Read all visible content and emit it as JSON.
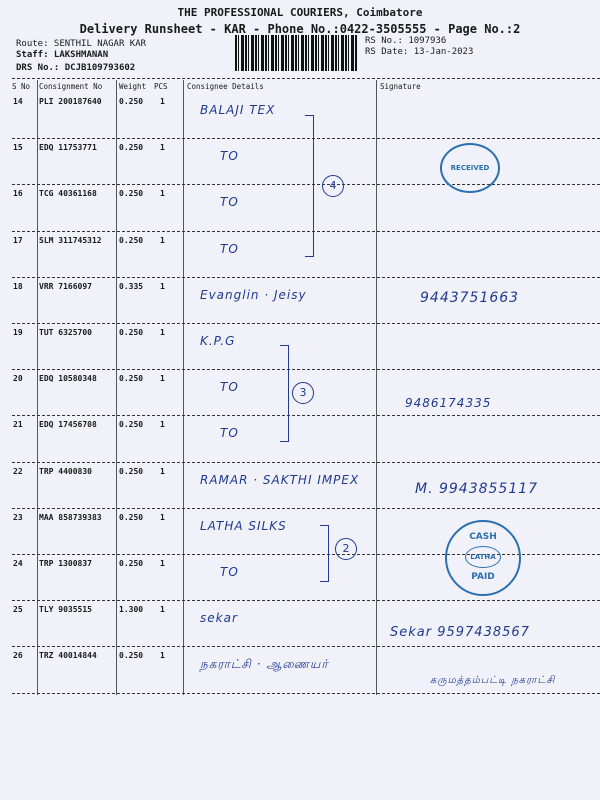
{
  "header": {
    "title": "THE PROFESSIONAL COURIERS, Coimbatore",
    "subtitle": "Delivery Runsheet - KAR - Phone No.:0422-3505555 - Page No.:2",
    "route": "Route: SENTHIL NAGAR KAR",
    "staff": "Staff: LAKSHMANAN",
    "drs_no": "DRS No.: DCJB109793602",
    "rs_no": "RS No.: 1097936",
    "rs_date": "RS Date: 13-Jan-2023"
  },
  "columns": [
    "S No",
    "Consignment No",
    "Weight",
    "PCS",
    "Consignee Details",
    "Signature"
  ],
  "rows": [
    {
      "sno": "14",
      "consignment": "PLI 200187640",
      "weight": "0.250",
      "pcs": "1",
      "consignee": "BALAJI TEX",
      "signature": ""
    },
    {
      "sno": "15",
      "consignment": "EDQ 11753771",
      "weight": "0.250",
      "pcs": "1",
      "consignee": "TO",
      "signature": ""
    },
    {
      "sno": "16",
      "consignment": "TCG 40361168",
      "weight": "0.250",
      "pcs": "1",
      "consignee": "TO",
      "signature": ""
    },
    {
      "sno": "17",
      "consignment": "SLM 311745312",
      "weight": "0.250",
      "pcs": "1",
      "consignee": "TO",
      "signature": ""
    },
    {
      "sno": "18",
      "consignment": "VRR 7166097",
      "weight": "0.335",
      "pcs": "1",
      "consignee": "Evanglin · Jeisy",
      "signature": "9443751663"
    },
    {
      "sno": "19",
      "consignment": "TUT 6325700",
      "weight": "0.250",
      "pcs": "1",
      "consignee": "K.P.G",
      "signature": ""
    },
    {
      "sno": "20",
      "consignment": "EDQ 10580348",
      "weight": "0.250",
      "pcs": "1",
      "consignee": "TO",
      "signature": "9486174335"
    },
    {
      "sno": "21",
      "consignment": "EDQ 17456708",
      "weight": "0.250",
      "pcs": "1",
      "consignee": "TO",
      "signature": ""
    },
    {
      "sno": "22",
      "consignment": "TRP 4400830",
      "weight": "0.250",
      "pcs": "1",
      "consignee": "RAMAR · SAKTHI IMPEX",
      "signature": "M. 9943855117"
    },
    {
      "sno": "23",
      "consignment": "MAA 858739383",
      "weight": "0.250",
      "pcs": "1",
      "consignee": "LATHA SILKS",
      "signature": ""
    },
    {
      "sno": "24",
      "consignment": "TRP 1300837",
      "weight": "0.250",
      "pcs": "1",
      "consignee": "TO",
      "signature": ""
    },
    {
      "sno": "25",
      "consignment": "TLY 9035515",
      "weight": "1.300",
      "pcs": "1",
      "consignee": "sekar",
      "signature": "Sekar 9597438567"
    },
    {
      "sno": "26",
      "consignment": "TRZ 40014844",
      "weight": "0.250",
      "pcs": "1",
      "consignee": "நகராட்சி · ஆணையர்",
      "signature": "கருமத்தம்பட்டி நகராட்சி"
    }
  ],
  "group_marks": [
    "4",
    "3",
    "2"
  ],
  "stamps": {
    "cash": "CASH",
    "paid": "PAID",
    "latha": "LATHA",
    "received": "RECEIVED"
  },
  "colors": {
    "ink": "#1f3a8f",
    "stamp": "#2a6fb0",
    "paper": "#f1f2f9"
  }
}
